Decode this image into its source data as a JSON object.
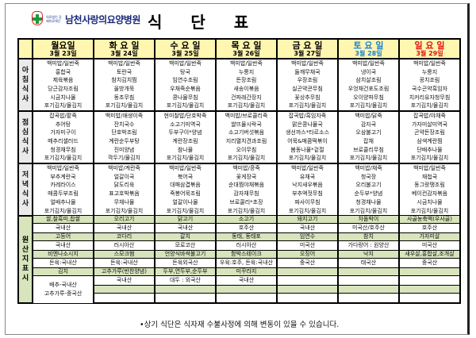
{
  "header": {
    "hospital_small": "의료법인 강혜의료재단",
    "hospital_name": "남천사랑의요양병원",
    "title": "식단표"
  },
  "colors": {
    "header_bg": "#fff6b0",
    "origin_label_bg": "#d7e4bc",
    "origin_side_bg": "#77933c",
    "saturday": "#1a7fd0",
    "sunday": "#e01010"
  },
  "days": [
    {
      "day": "월요일",
      "date": "3월 23일",
      "color": "#000000"
    },
    {
      "day": "화 요 일",
      "date": "3월 24일",
      "color": "#000000"
    },
    {
      "day": "수 요 일",
      "date": "3월 25일",
      "color": "#000000"
    },
    {
      "day": "목 요 일",
      "date": "3월 26일",
      "color": "#000000"
    },
    {
      "day": "금 요 일",
      "date": "3월 27일",
      "color": "#000000"
    },
    {
      "day": "토 요 일",
      "date": "3월 28일",
      "color": "#1a7fd0"
    },
    {
      "day": "일 요 일",
      "date": "3월 29일",
      "color": "#e01010"
    }
  ],
  "meals": [
    {
      "label": "아 침 식 사",
      "rows": [
        [
          "백미밥/일반죽",
          "백미밥/일반죽",
          "백미밥/일반죽",
          "백미밥/일반죽",
          "백미밥/일반죽",
          "백미밥/일반죽",
          "백미밥/일반죽"
        ],
        [
          "홍합국",
          "토란국",
          "탕국",
          "누룽지",
          "들깨무채국",
          "냉이국",
          "누룽지"
        ],
        [
          "제육볶음",
          "참치김치찜",
          "임연수조림",
          "돈장조림",
          "우장조림",
          "삼치살조림",
          "꽁치조림"
        ],
        [
          "당근감자조림",
          "올방개묵",
          "우채죽순볶음",
          "새송이볶음",
          "실곤약콘무침",
          "우엉채건포도조림",
          "국수곤약흑임자"
        ],
        [
          "시금치나물",
          "동초무침",
          "콩나물무침",
          "건파래간장지",
          "꽃상추무침",
          "오이양파무침",
          "치커리유자청무침"
        ],
        [
          "포기김치/물김치",
          "포기김치/물김치",
          "포기김치/물김치",
          "포기김치/물김치",
          "포기김치/물김치",
          "포기김치/물김치",
          "포기김치/물김치"
        ]
      ]
    },
    {
      "label": "점 심 식 사",
      "rows": [
        [
          "잡곡밥/팥죽",
          "백미밥/애생이죽",
          "현미찰밥/단호박죽",
          "백미밥/브로콜리죽",
          "잡곡밥/흑임자죽",
          "백미밥/닭죽",
          "잡곡밥/야채죽"
        ],
        [
          "추어탕",
          "잔치국수",
          "소고기미역국",
          "쌀뜨물시락국",
          "맑은콩나물국",
          "감자국",
          "가자미살미역국"
        ],
        [
          "가자미구이",
          "단호박조림",
          "두부구이*양념",
          "소고기버섯볶음",
          "생선까스*타르소스",
          "오삼불고기",
          "곤약돈장조림"
        ],
        [
          "메추리샐러드",
          "계란순두부탕",
          "계란장조림",
          "지리멸치견과조림",
          "어묵&매콤떡볶이",
          "잡채",
          "삼색계란찜"
        ],
        [
          "청경채무침",
          "진미양념",
          "참나물",
          "오이무침",
          "봄동나물*겉절",
          "브로콜리무침",
          "단배추나물"
        ],
        [
          "포기김치/물김치",
          "깍두기/물김치",
          "포기김치/물김치",
          "포기김치/물김치",
          "포기김치/물김치",
          "포기김치/물김치",
          "포기김치/물김치"
        ]
      ]
    },
    {
      "label": "저 녁 식 사",
      "rows": [
        [
          "백미밥/일반죽",
          "백미밥/계란죽",
          "백미밥/일반죽",
          "백미밥/콩죽",
          "백미밥/일반죽",
          "백미밥/채죽",
          "백미밥/일반죽"
        ],
        [
          "부추계란국",
          "얼갈이국",
          "북어국",
          "꽃게장국",
          "유채국",
          "청국장",
          "재첩국"
        ],
        [
          "카레라이스",
          "닭도리육",
          "대패삼겹볶음",
          "순대찜야채볶음",
          "낙지새우볶음",
          "오리불고기",
          "동그랑땡조림"
        ],
        [
          "매콤두부조림",
          "표고호박볶음",
          "죽봉어묵조림",
          "감자채무침",
          "부추액젓무침",
          "순두부*양념",
          "베이컨감자볶음"
        ],
        [
          "얼배추나물",
          "무채나물",
          "얼갈이나물",
          "브로콜리*초장",
          "짜사이무침",
          "청경채나물",
          "시금치나물"
        ],
        [
          "포기김치/물김치",
          "포기김치/물김치",
          "포기김치/물김치",
          "포기김치/물김치",
          "포기김치/물김치",
          "포기김치/물김치",
          "포기김치/물김치"
        ]
      ]
    }
  ],
  "origin": {
    "label": "원 산 지 표 시",
    "rows": [
      [
        "쌀,찰흑미,찹쌀",
        "오리고기",
        "닭고기",
        "소고기",
        "돼지고기",
        "차돌박이",
        "사골농축액(우사골)"
      ],
      [
        "국내산",
        "국내산",
        "국내산",
        "호주산",
        "국내산",
        "미국산/호주산",
        "호주산"
      ],
      [
        "고등어",
        "코다리",
        "갈치",
        "동태, 동태포",
        "임연수",
        "참치",
        "가자미살"
      ],
      [
        "국내산",
        "러시아산",
        "모로코산",
        "러시아산",
        "미국산",
        "가다랑어 : 원양산",
        "미국산"
      ],
      [
        "비엔나소시지",
        "스모크햄",
        "언양식바싹불고기",
        "함박스테이크",
        "오징어",
        "낙지",
        "새우살,홍합살,조개살"
      ],
      [
        "돈육:국내산",
        "돈육:국내산",
        "돈육외국산",
        "우육:호주, 돈육:국내산",
        "중국산",
        "태국산",
        "중국산"
      ],
      [
        "김치",
        "고추가루(반찬양념)",
        "두부,연두부,순두부",
        "미꾸라지",
        "",
        "",
        ""
      ],
      [
        "",
        "국내산",
        "대두 : 외국산",
        "국내산",
        "",
        "",
        ""
      ],
      [
        "",
        "",
        "",
        "",
        "",
        "",
        ""
      ],
      [
        "",
        "",
        "",
        "",
        "",
        "",
        ""
      ]
    ],
    "kimchi_origin": [
      "배추-국내산",
      "고추가루-중국산"
    ]
  },
  "footer": {
    "note": "•상기 식단은 식자재 수불사정에 의해 변동이 있을 수 있습니다."
  }
}
